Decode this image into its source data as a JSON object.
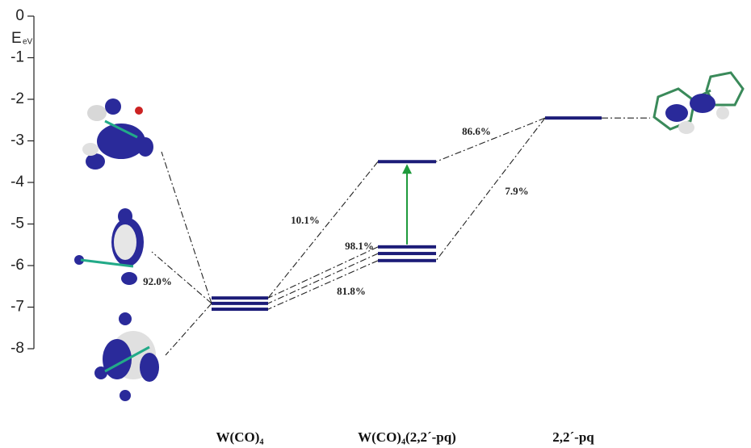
{
  "chart_data": {
    "type": "energy-level",
    "y_label": "E",
    "y_unit": "eV",
    "ylim": [
      -8,
      0
    ],
    "yticks": [
      0,
      -1,
      -2,
      -3,
      -4,
      -5,
      -6,
      -7,
      -8
    ],
    "color": "#1c1c78",
    "transition_color": "#1f9a3c",
    "columns": [
      {
        "name": "W(CO)₄",
        "levels": [
          -6.78,
          -6.91,
          -7.05
        ]
      },
      {
        "name": "W(CO)₄(2,2´-pq)",
        "levels": [
          -3.5,
          -5.55,
          -5.71,
          -5.88
        ]
      },
      {
        "name": "2,2´-pq",
        "levels": [
          -2.45
        ]
      }
    ],
    "contributions": [
      "86.6%",
      "7.9%",
      "10.1%",
      "98.1%",
      "92.0%",
      "81.8%"
    ]
  }
}
